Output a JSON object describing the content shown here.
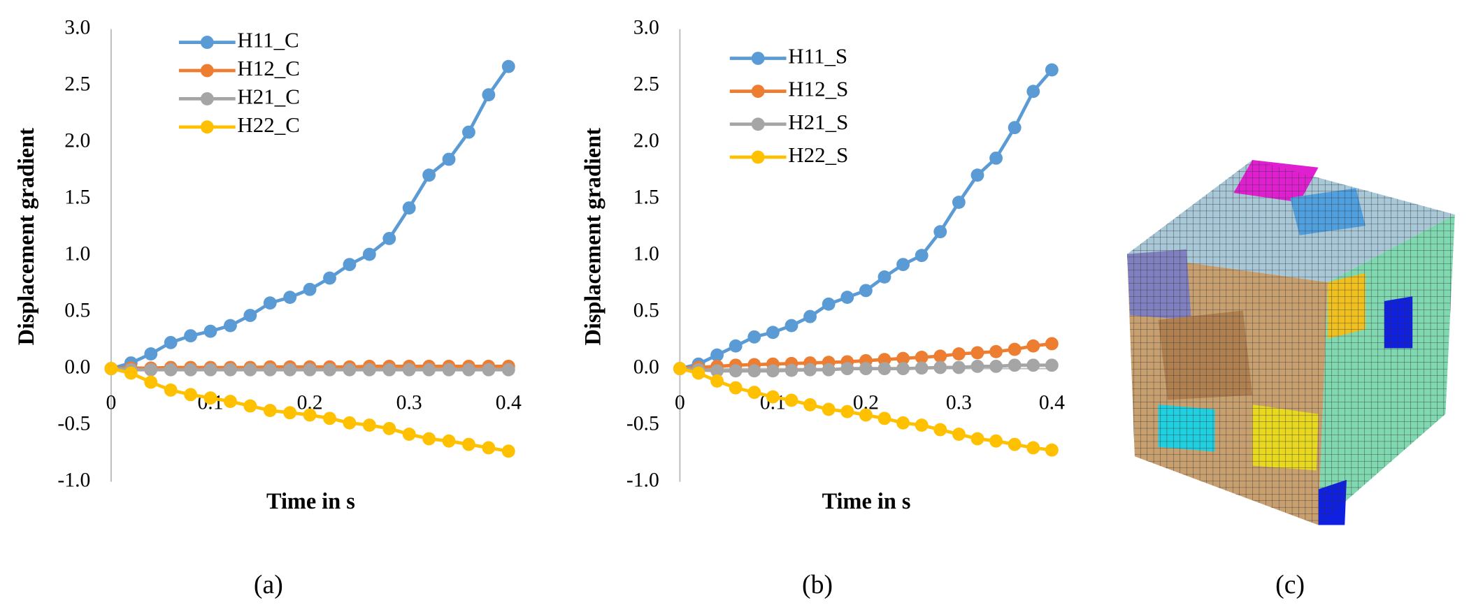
{
  "chart_data": [
    {
      "type": "line",
      "x_label": "Time in s",
      "y_label": "Displacement gradient",
      "x": [
        0,
        0.02,
        0.04,
        0.06,
        0.08,
        0.1,
        0.12,
        0.14,
        0.16,
        0.18,
        0.2,
        0.22,
        0.24,
        0.26,
        0.28,
        0.3,
        0.32,
        0.34,
        0.36,
        0.38,
        0.4
      ],
      "series": [
        {
          "name": "H11_C",
          "color": "#5b9bd5",
          "values": [
            0,
            0.05,
            0.13,
            0.23,
            0.29,
            0.33,
            0.38,
            0.47,
            0.58,
            0.63,
            0.7,
            0.8,
            0.92,
            1.01,
            1.15,
            1.42,
            1.71,
            1.85,
            2.09,
            2.42,
            2.67
          ]
        },
        {
          "name": "H12_C",
          "color": "#ed7d31",
          "values": [
            0,
            0.005,
            0.005,
            0.01,
            0.01,
            0.01,
            0.01,
            0.01,
            0.015,
            0.015,
            0.015,
            0.015,
            0.015,
            0.02,
            0.02,
            0.02,
            0.02,
            0.02,
            0.02,
            0.02,
            0.02
          ]
        },
        {
          "name": "H21_C",
          "color": "#a5a5a5",
          "values": [
            0,
            -0.01,
            -0.01,
            -0.01,
            -0.01,
            -0.01,
            -0.01,
            -0.01,
            -0.01,
            -0.01,
            -0.01,
            -0.01,
            -0.01,
            -0.01,
            -0.01,
            -0.01,
            -0.01,
            -0.01,
            -0.01,
            -0.01,
            -0.01
          ]
        },
        {
          "name": "H22_C",
          "color": "#ffc000",
          "values": [
            0,
            -0.04,
            -0.12,
            -0.19,
            -0.23,
            -0.26,
            -0.29,
            -0.33,
            -0.37,
            -0.39,
            -0.41,
            -0.44,
            -0.48,
            -0.5,
            -0.53,
            -0.58,
            -0.62,
            -0.64,
            -0.67,
            -0.7,
            -0.73
          ]
        }
      ],
      "xlim": [
        0,
        0.4
      ],
      "xticks": [
        0,
        0.1,
        0.2,
        0.3,
        0.4
      ],
      "ylim": [
        -1,
        3
      ],
      "yticks": [
        {
          "value": -1,
          "label": "-1.0"
        },
        {
          "value": -0.5,
          "label": "-0.5"
        },
        {
          "value": 0,
          "label": "0.0"
        },
        {
          "value": 0.5,
          "label": "0.5"
        },
        {
          "value": 1,
          "label": "1.0"
        },
        {
          "value": 1.5,
          "label": "1.5"
        },
        {
          "value": 2,
          "label": "2.0"
        },
        {
          "value": 2.5,
          "label": "2.5"
        },
        {
          "value": 3,
          "label": "3.0"
        }
      ],
      "panel_label": "(a)"
    },
    {
      "type": "line",
      "x_label": "Time in s",
      "y_label": "Displacement gradient",
      "x": [
        0,
        0.02,
        0.04,
        0.06,
        0.08,
        0.1,
        0.12,
        0.14,
        0.16,
        0.18,
        0.2,
        0.22,
        0.24,
        0.26,
        0.28,
        0.3,
        0.32,
        0.34,
        0.36,
        0.38,
        0.4
      ],
      "series": [
        {
          "name": "H11_S",
          "color": "#5b9bd5",
          "values": [
            0,
            0.04,
            0.12,
            0.2,
            0.28,
            0.32,
            0.38,
            0.46,
            0.57,
            0.63,
            0.69,
            0.81,
            0.92,
            1.0,
            1.21,
            1.47,
            1.71,
            1.86,
            2.13,
            2.45,
            2.64
          ]
        },
        {
          "name": "H12_S",
          "color": "#ed7d31",
          "values": [
            0,
            0.01,
            0.02,
            0.03,
            0.035,
            0.04,
            0.045,
            0.05,
            0.055,
            0.06,
            0.07,
            0.08,
            0.09,
            0.1,
            0.11,
            0.13,
            0.14,
            0.15,
            0.17,
            0.2,
            0.22
          ]
        },
        {
          "name": "H21_S",
          "color": "#a5a5a5",
          "values": [
            0,
            -0.01,
            -0.02,
            -0.02,
            -0.02,
            -0.02,
            -0.015,
            -0.01,
            -0.01,
            0,
            0,
            0,
            0,
            0.005,
            0.01,
            0.01,
            0.02,
            0.02,
            0.03,
            0.03,
            0.03
          ]
        },
        {
          "name": "H22_S",
          "color": "#ffc000",
          "values": [
            0,
            -0.04,
            -0.11,
            -0.17,
            -0.21,
            -0.25,
            -0.28,
            -0.32,
            -0.36,
            -0.38,
            -0.41,
            -0.44,
            -0.48,
            -0.5,
            -0.54,
            -0.58,
            -0.62,
            -0.64,
            -0.67,
            -0.7,
            -0.72
          ]
        }
      ],
      "xlim": [
        0,
        0.4
      ],
      "xticks": [
        0,
        0.1,
        0.2,
        0.3,
        0.4
      ],
      "ylim": [
        -1,
        3
      ],
      "yticks": [
        {
          "value": -1,
          "label": "-1.0"
        },
        {
          "value": -0.5,
          "label": "-0.5"
        },
        {
          "value": 0,
          "label": "0.0"
        },
        {
          "value": 0.5,
          "label": "0.5"
        },
        {
          "value": 1,
          "label": "1.0"
        },
        {
          "value": 1.5,
          "label": "1.5"
        },
        {
          "value": 2,
          "label": "2.0"
        },
        {
          "value": 2.5,
          "label": "2.5"
        },
        {
          "value": 3,
          "label": "3.0"
        }
      ],
      "panel_label": "(b)"
    }
  ],
  "image_panel_label": "(c)"
}
